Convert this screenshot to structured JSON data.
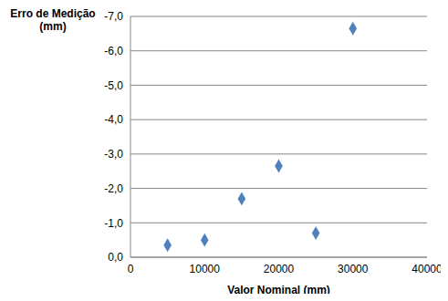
{
  "chart_data": {
    "type": "scatter",
    "y_label": "Erro de Medição (mm)",
    "x_label": "Valor Nominal (mm)",
    "x": [
      5000,
      10000,
      15000,
      20000,
      25000,
      30000
    ],
    "values": [
      -0.35,
      -0.5,
      -1.7,
      -2.65,
      -0.7,
      -6.65
    ],
    "color": "#4f81bd",
    "marker": "diamond",
    "xlim": [
      0,
      40000
    ],
    "xticks": [
      0,
      10000,
      20000,
      30000,
      40000
    ],
    "ylim": [
      0,
      -7
    ],
    "yticks": [
      {
        "value": 0,
        "label": "0,0"
      },
      {
        "value": -1,
        "label": "-1,0"
      },
      {
        "value": -2,
        "label": "-2,0"
      },
      {
        "value": -3,
        "label": "-3,0"
      },
      {
        "value": -4,
        "label": "-4,0"
      },
      {
        "value": -5,
        "label": "-5,0"
      },
      {
        "value": -6,
        "label": "-6,0"
      },
      {
        "value": -7,
        "label": "-7,0"
      }
    ],
    "grid": true
  }
}
